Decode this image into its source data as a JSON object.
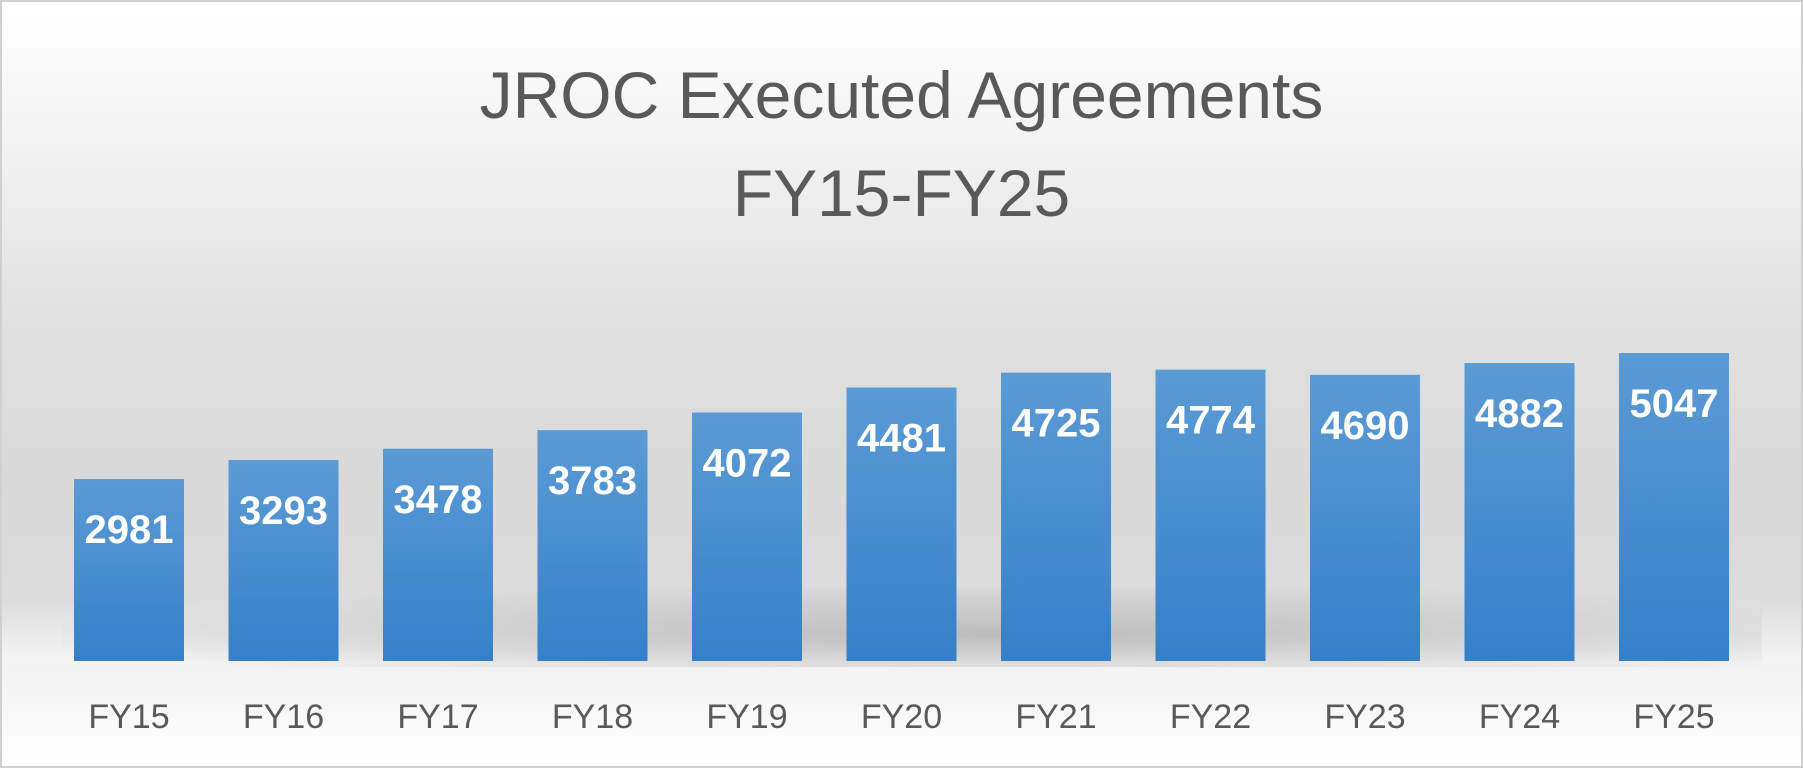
{
  "chart_data": {
    "type": "bar",
    "title": [
      "JROC Executed Agreements",
      "FY15-FY25"
    ],
    "categories": [
      "FY15",
      "FY16",
      "FY17",
      "FY18",
      "FY19",
      "FY20",
      "FY21",
      "FY22",
      "FY23",
      "FY24",
      "FY25"
    ],
    "values": [
      2981,
      3293,
      3478,
      3783,
      4072,
      4481,
      4725,
      4774,
      4690,
      4882,
      5047
    ],
    "xlabel": "",
    "ylabel": "",
    "ylim": [
      0,
      5047
    ],
    "grid": false,
    "legend": "none",
    "data_labels": true,
    "colors": {
      "bar_top": "#5b9bd5",
      "bar_bottom": "#3580c9",
      "label": "#ffffff",
      "axis_text": "#595959"
    }
  }
}
